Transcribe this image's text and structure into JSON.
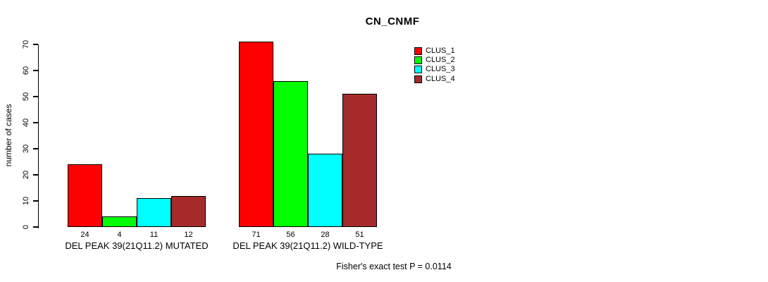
{
  "chart_data": {
    "type": "bar",
    "title": "CN_CNMF",
    "ylabel": "number of cases",
    "ylim": [
      0,
      70
    ],
    "yticks": [
      0,
      10,
      20,
      30,
      40,
      50,
      60,
      70
    ],
    "categories": [
      "DEL PEAK 39(21Q11.2) MUTATED",
      "DEL PEAK 39(21Q11.2) WILD-TYPE"
    ],
    "series": [
      {
        "name": "CLUS_1",
        "color": "#FF0000",
        "values": [
          24,
          71
        ]
      },
      {
        "name": "CLUS_2",
        "color": "#00FF00",
        "values": [
          4,
          56
        ]
      },
      {
        "name": "CLUS_3",
        "color": "#00FFFF",
        "values": [
          11,
          28
        ]
      },
      {
        "name": "CLUS_4",
        "color": "#A52A2A",
        "values": [
          12,
          51
        ]
      }
    ],
    "bar_value_labels": {
      "group1": [
        24,
        4,
        11,
        12
      ],
      "group2": [
        71,
        56,
        28,
        51
      ]
    },
    "legend_position": "top-right",
    "legend_entries": [
      "CLUS_1",
      "CLUS_2",
      "CLUS_3",
      "CLUS_4"
    ],
    "grid": false,
    "annotation": "Fisher's exact test P = 0.0114",
    "axis_color": "#000000",
    "background_color": "#FFFFFF"
  }
}
